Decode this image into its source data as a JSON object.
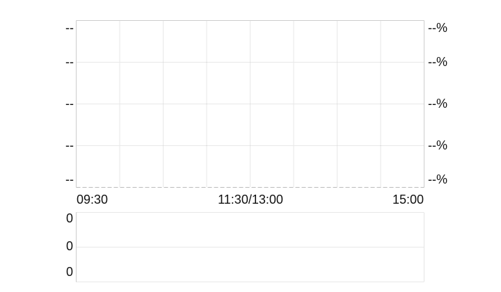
{
  "chart_data": [
    {
      "type": "line",
      "title": "",
      "x_ticks": [
        "09:30",
        "11:30/13:00",
        "15:00"
      ],
      "y_left_ticks": [
        "--",
        "--",
        "--",
        "--",
        "--"
      ],
      "y_right_ticks": [
        "--%",
        "--%",
        "--%",
        "--%",
        "--%"
      ],
      "series": [],
      "grid": true
    },
    {
      "type": "bar",
      "title": "",
      "y_ticks": [
        "0",
        "0",
        "0"
      ],
      "series": [],
      "grid": true
    }
  ],
  "colors": {
    "grid": "#d0d0d0",
    "border": "#cccccc",
    "text": "#111111"
  }
}
